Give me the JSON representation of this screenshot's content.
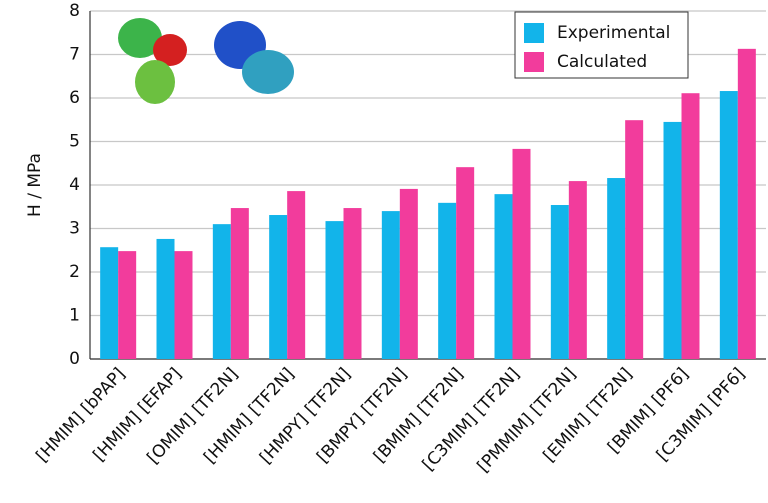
{
  "chart_data": {
    "type": "bar",
    "ylabel": "H / MPa",
    "categories": [
      "[HMIM] [bPAP]",
      "[HMIM] [EFAP]",
      "[OMIM] [TF2N]",
      "[HMIM] [TF2N]",
      "[HMPY] [TF2N]",
      "[BMPY] [TF2N]",
      "[BMIM] [TF2N]",
      "[C3MIM] [TF2N]",
      "[PMMIM] [TF2N]",
      "[EMIM] [TF2N]",
      "[BMIM] [PF6]",
      "[C3MIM] [PF6]"
    ],
    "series": [
      {
        "name": "Experimental",
        "color": "#12b4ea",
        "values": [
          2.57,
          2.76,
          3.1,
          3.31,
          3.17,
          3.4,
          3.59,
          3.79,
          3.54,
          4.16,
          5.45,
          6.16
        ]
      },
      {
        "name": "Calculated",
        "color": "#f23c9c",
        "values": [
          2.48,
          2.48,
          3.47,
          3.86,
          3.47,
          3.91,
          4.41,
          4.83,
          4.09,
          5.49,
          6.11,
          7.13
        ]
      }
    ],
    "ylim": [
      0,
      8
    ],
    "yticks": [
      0,
      1,
      2,
      3,
      4,
      5,
      6,
      7,
      8
    ],
    "grid": true,
    "legend": "upper right"
  }
}
